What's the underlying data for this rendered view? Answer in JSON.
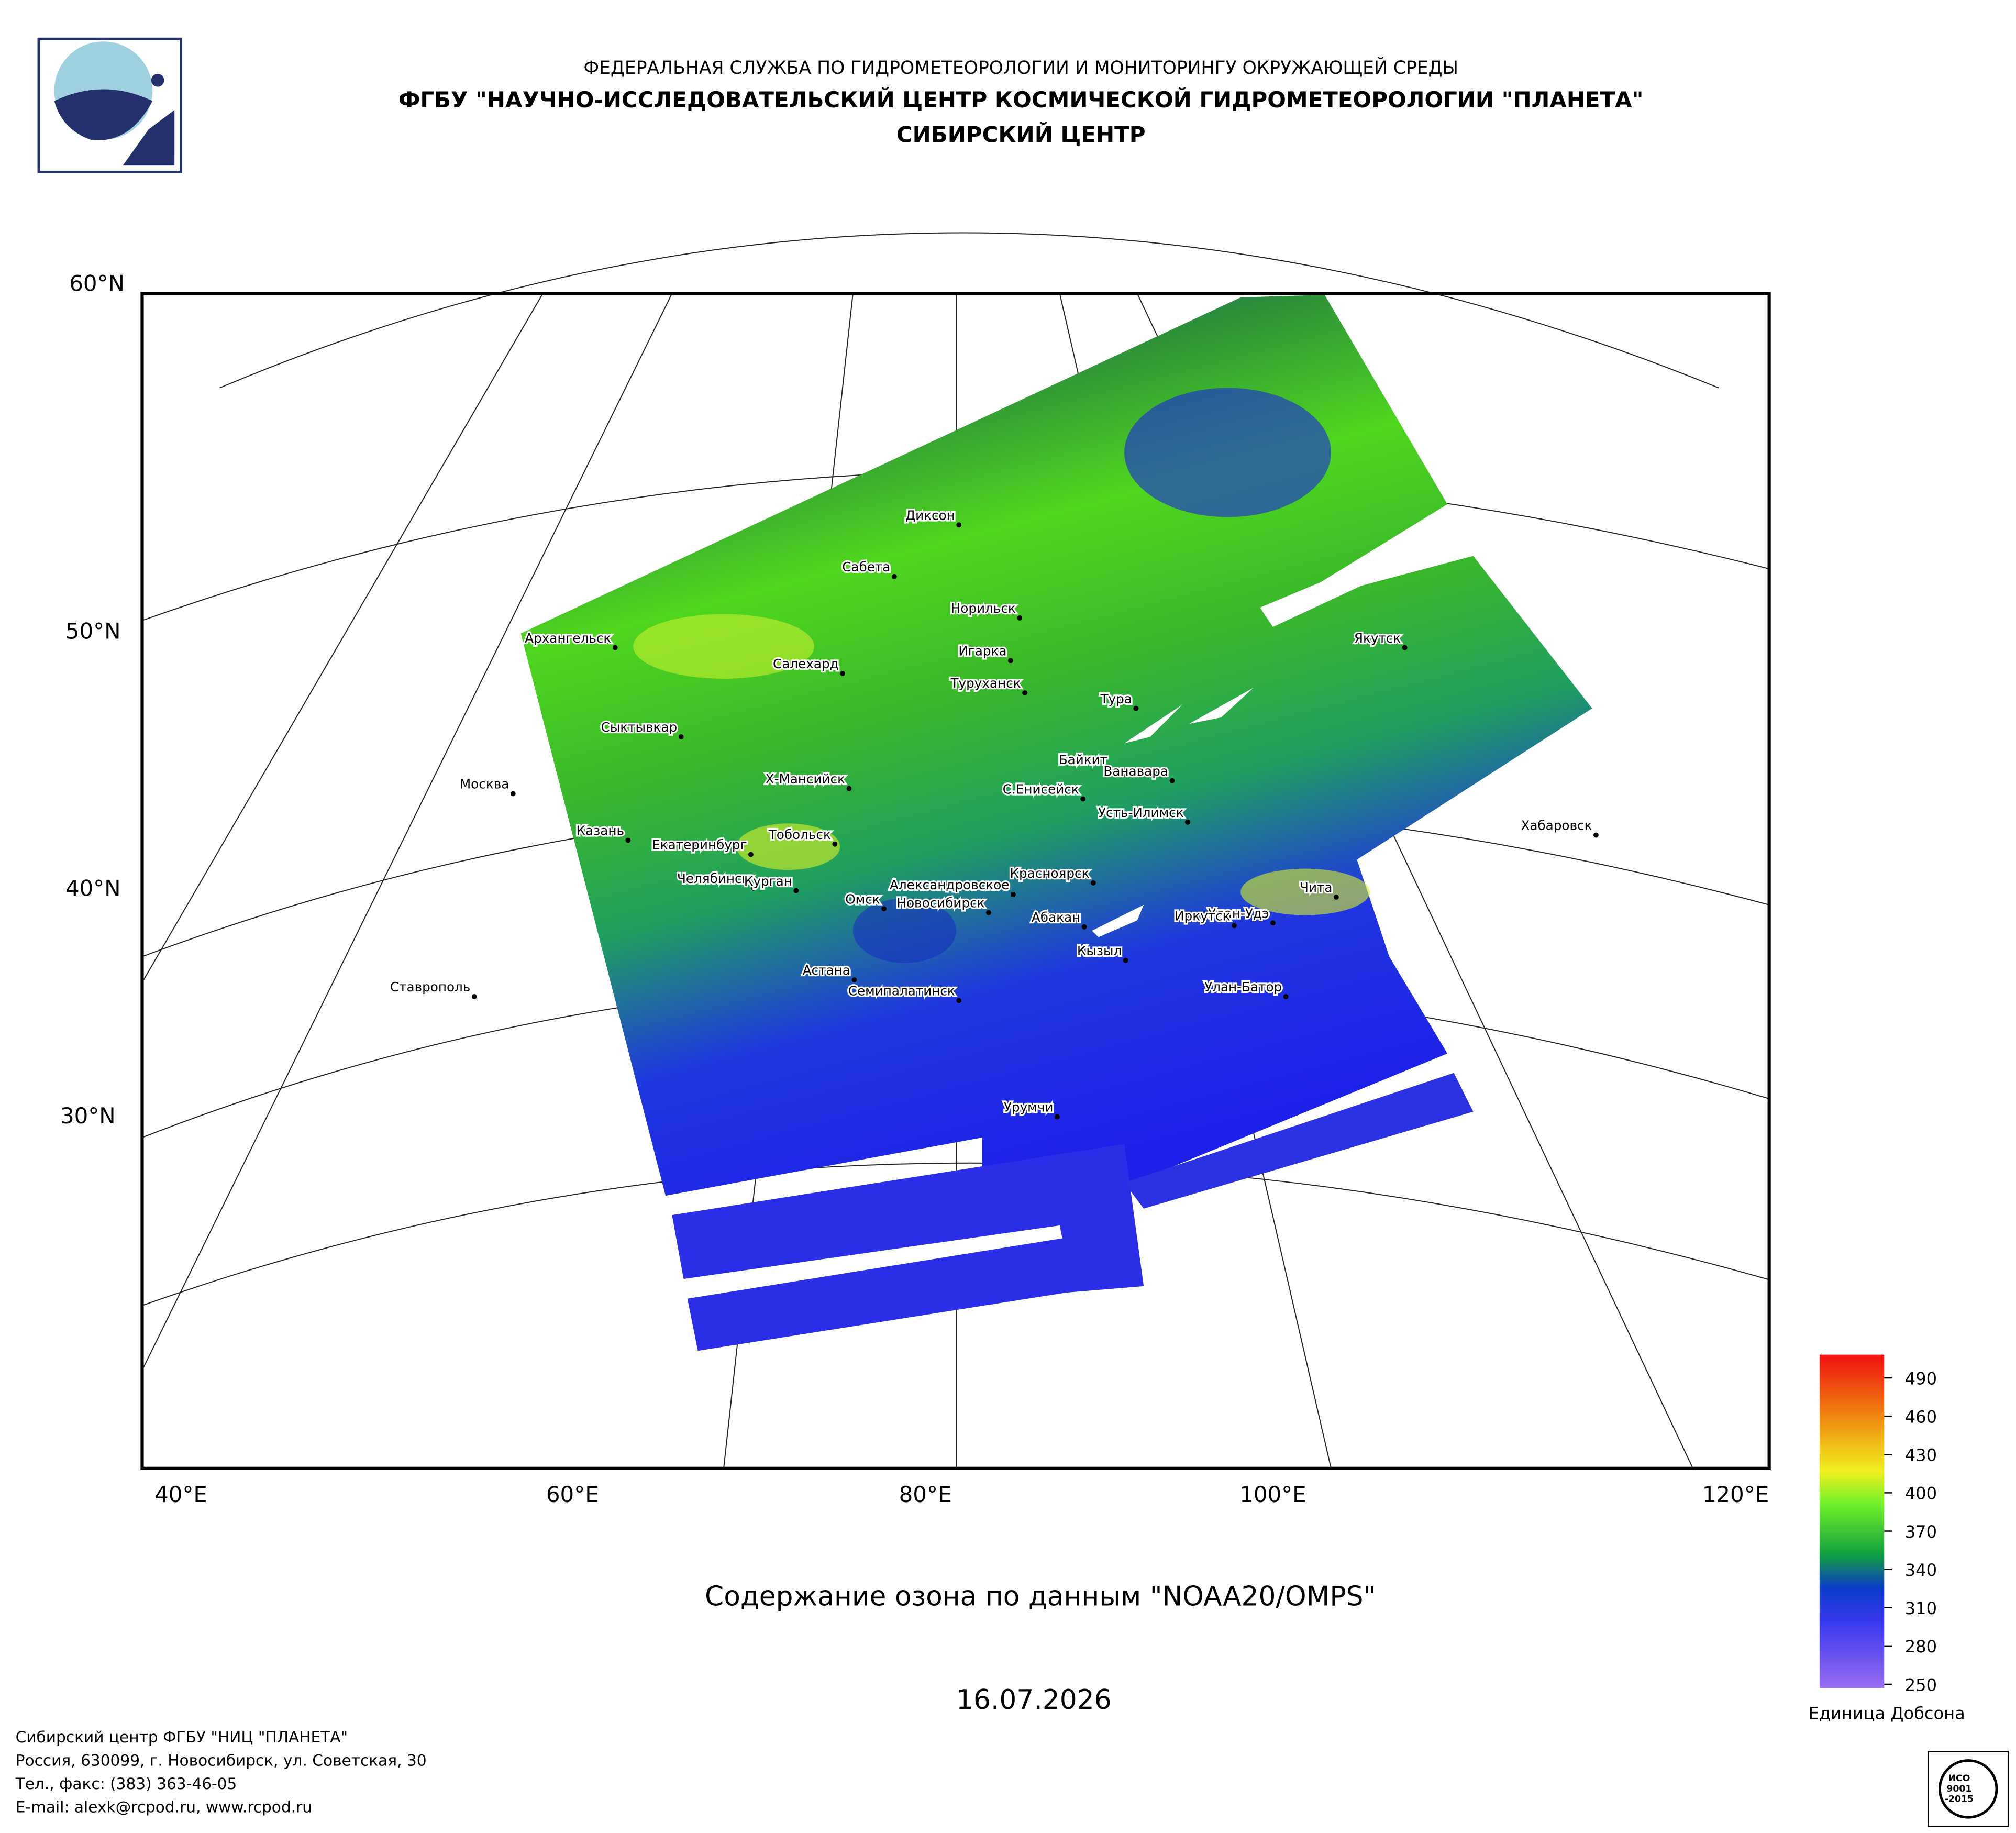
{
  "header": {
    "line1": "ФЕДЕРАЛЬНАЯ СЛУЖБА ПО ГИДРОМЕТЕОРОЛОГИИ И МОНИТОРИНГУ ОКРУЖАЮЩЕЙ СРЕДЫ",
    "line2": "ФГБУ \"НАУЧНО-ИССЛЕДОВАТЕЛЬСКИЙ ЦЕНТР КОСМИЧЕСКОЙ ГИДРОМЕТЕОРОЛОГИИ \"ПЛАНЕТА\"",
    "line3": "СИБИРСКИЙ ЦЕНТР"
  },
  "map": {
    "lat_labels": [
      "60°N",
      "50°N",
      "40°N",
      "30°N"
    ],
    "lon_labels": [
      "40°E",
      "60°E",
      "80°E",
      "100°E",
      "120°E"
    ],
    "cities": [
      "Диксон",
      "Сабета",
      "Норильск",
      "Архангельск",
      "Якутск",
      "Салехард",
      "Игарка",
      "Туруханск",
      "Тура",
      "Сыктывкар",
      "Байкит",
      "Ванавара",
      "Москва",
      "Х-Мансийск",
      "С.Енисейск",
      "Усть-Илимск",
      "Хабаровск",
      "Казань",
      "Тобольск",
      "Екатеринбург",
      "Красноярск",
      "Чита",
      "Челябинск",
      "Курган",
      "Александровское",
      "Омск",
      "Новосибирск",
      "Абакан",
      "Улан-Удэ",
      "Иркутск",
      "Кызыл",
      "Астана",
      "Семипалатинск",
      "Улан-Батор",
      "Ставрополь",
      "Урумчи"
    ]
  },
  "title": "Содержание озона по данным \"NOAA20/OMPS\"",
  "date": "16.07.2026",
  "legend": {
    "ticks": [
      490,
      460,
      430,
      400,
      370,
      340,
      310,
      280,
      250
    ],
    "unit": "Единица Добсона"
  },
  "footer": {
    "lines": [
      "Сибирский центр ФГБУ \"НИЦ \"ПЛАНЕТА\"",
      "Россия, 630099, г. Новосибирск, ул. Советская, 30",
      "Тел., факс: (383) 363-46-05",
      "E-mail: alexk@rcpod.ru, www.rcpod.ru"
    ]
  },
  "stamp": {
    "lines": [
      "ИСО",
      "9001",
      "-2015"
    ]
  }
}
